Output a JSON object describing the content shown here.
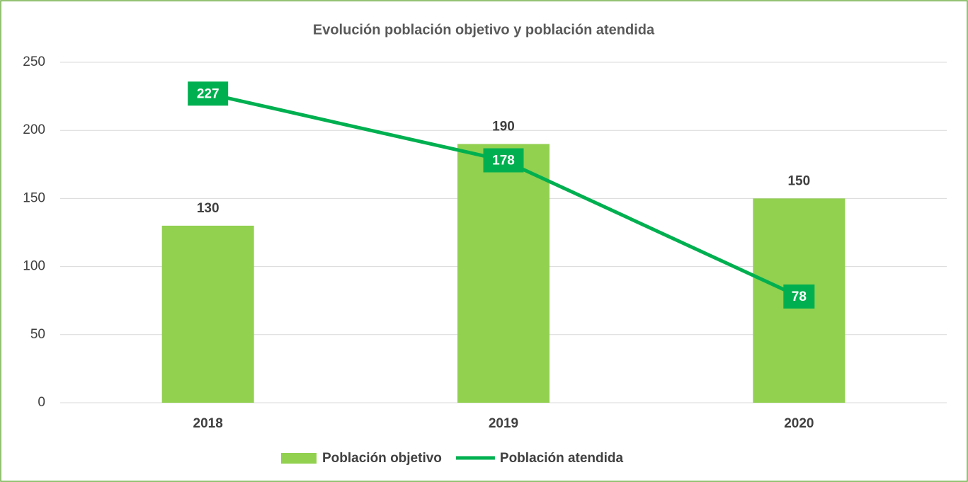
{
  "chart_data": {
    "type": "bar",
    "title": "Evolución población objetivo y población atendida",
    "categories": [
      "2018",
      "2019",
      "2020"
    ],
    "series": [
      {
        "name": "Población objetivo",
        "type": "bar",
        "color": "#92d050",
        "values": [
          130,
          190,
          150
        ]
      },
      {
        "name": "Población atendida",
        "type": "line",
        "color": "#00b050",
        "values": [
          227,
          178,
          78
        ]
      }
    ],
    "ylim": [
      0,
      250
    ],
    "yticks": [
      0,
      50,
      100,
      150,
      200,
      250
    ],
    "grid": true,
    "legend": "bottom"
  }
}
